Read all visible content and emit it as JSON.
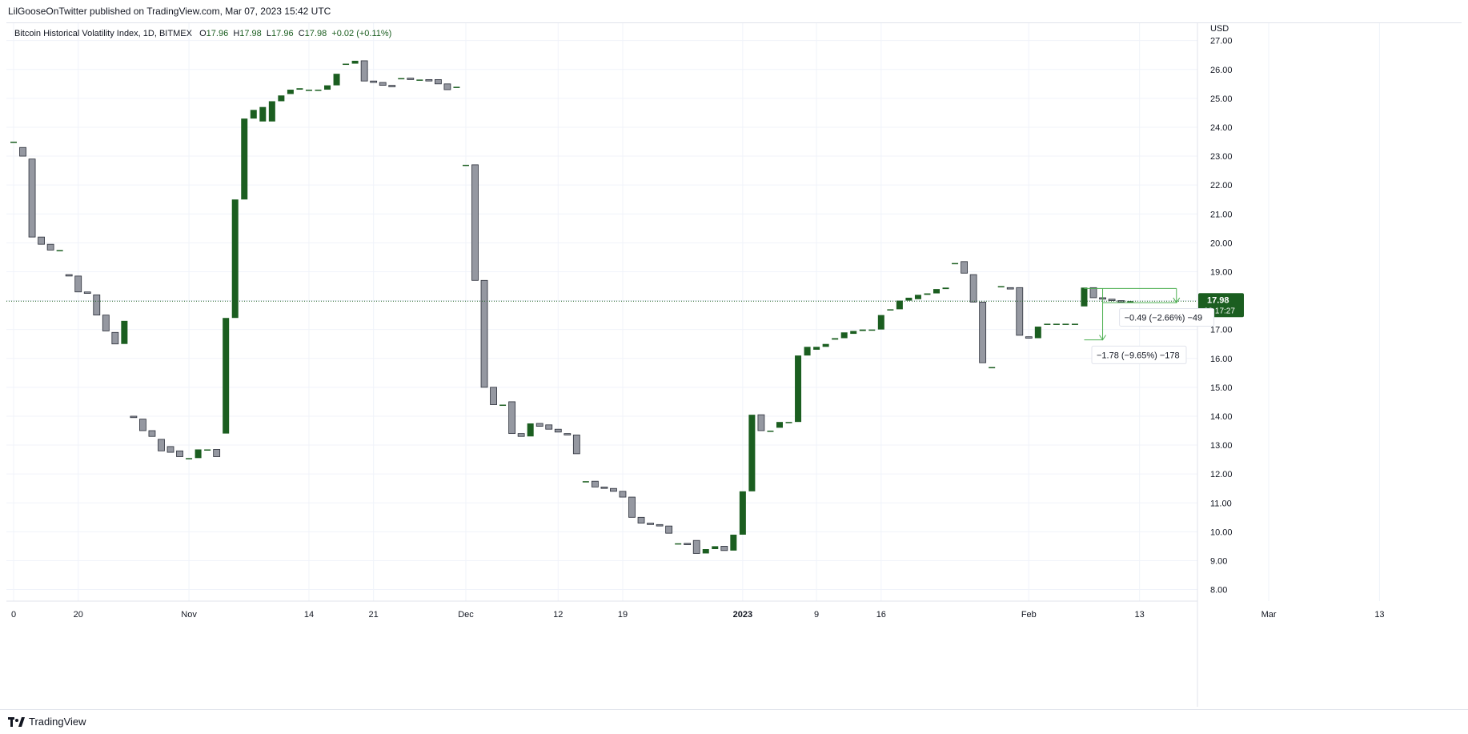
{
  "header": {
    "published": "LilGooseOnTwitter published on TradingView.com, Mar 07, 2023 15:42 UTC"
  },
  "legend": {
    "symbol": "Bitcoin Historical Volatility Index, 1D, BITMEX",
    "open_label": "O",
    "open": "17.96",
    "high_label": "H",
    "high": "17.98",
    "low_label": "L",
    "low": "17.96",
    "close_label": "C",
    "close": "17.98",
    "change": "+0.02 (+0.11%)"
  },
  "footer": {
    "brand": "TradingView",
    "logo": "tradingview-logo-icon"
  },
  "colors": {
    "up": "#1b5e20",
    "down": "#9598a1",
    "grid": "#f0f3fa",
    "price_line": "#1b5e20",
    "text": "#131722"
  },
  "chart_data": {
    "type": "candlestick",
    "currency": "USD",
    "ylim": [
      7.6,
      27.6
    ],
    "y_ticks": [
      "8.00",
      "9.00",
      "10.00",
      "11.00",
      "12.00",
      "13.00",
      "14.00",
      "15.00",
      "16.00",
      "17.00",
      "18.00",
      "19.00",
      "20.00",
      "21.00",
      "22.00",
      "23.00",
      "24.00",
      "25.00",
      "26.00",
      "27.00"
    ],
    "x_ticks": [
      {
        "label": "0",
        "index": 0
      },
      {
        "label": "20",
        "index": 7
      },
      {
        "label": "Nov",
        "index": 19
      },
      {
        "label": "14",
        "index": 32
      },
      {
        "label": "21",
        "index": 39
      },
      {
        "label": "Dec",
        "index": 49
      },
      {
        "label": "12",
        "index": 59
      },
      {
        "label": "19",
        "index": 66
      },
      {
        "label": "2023",
        "index": 79
      },
      {
        "label": "9",
        "index": 87
      },
      {
        "label": "16",
        "index": 94
      },
      {
        "label": "Feb",
        "index": 110
      },
      {
        "label": "13",
        "index": 122
      },
      {
        "label": "Mar",
        "index": 136
      },
      {
        "label": "13",
        "index": 148
      }
    ],
    "last_price": "17.98",
    "countdown": "08:17:27",
    "candles": [
      {
        "o": 23.5,
        "c": 23.5
      },
      {
        "o": 23.3,
        "c": 23.0
      },
      {
        "o": 22.9,
        "c": 20.2
      },
      {
        "o": 20.2,
        "c": 19.95
      },
      {
        "o": 19.95,
        "c": 19.75
      },
      {
        "o": 19.75,
        "c": 19.75
      },
      {
        "o": 18.9,
        "c": 18.85
      },
      {
        "o": 18.85,
        "c": 18.3
      },
      {
        "o": 18.3,
        "c": 18.25
      },
      {
        "o": 18.2,
        "c": 17.5
      },
      {
        "o": 17.5,
        "c": 16.95
      },
      {
        "o": 16.9,
        "c": 16.5
      },
      {
        "o": 16.5,
        "c": 17.3
      },
      {
        "o": 14.0,
        "c": 13.95
      },
      {
        "o": 13.9,
        "c": 13.5
      },
      {
        "o": 13.5,
        "c": 13.3
      },
      {
        "o": 13.2,
        "c": 12.8
      },
      {
        "o": 12.95,
        "c": 12.75
      },
      {
        "o": 12.8,
        "c": 12.6
      },
      {
        "o": 12.55,
        "c": 12.55
      },
      {
        "o": 12.55,
        "c": 12.85
      },
      {
        "o": 12.85,
        "c": 12.85
      },
      {
        "o": 12.85,
        "c": 12.6
      },
      {
        "o": 13.4,
        "c": 17.4
      },
      {
        "o": 17.4,
        "c": 21.5
      },
      {
        "o": 21.5,
        "c": 24.3
      },
      {
        "o": 24.3,
        "c": 24.6
      },
      {
        "o": 24.2,
        "c": 24.7
      },
      {
        "o": 24.2,
        "c": 24.9
      },
      {
        "o": 24.9,
        "c": 25.1
      },
      {
        "o": 25.15,
        "c": 25.3
      },
      {
        "o": 25.3,
        "c": 25.35
      },
      {
        "o": 25.3,
        "c": 25.3
      },
      {
        "o": 25.3,
        "c": 25.3
      },
      {
        "o": 25.3,
        "c": 25.45
      },
      {
        "o": 25.45,
        "c": 25.85
      },
      {
        "o": 26.2,
        "c": 26.2
      },
      {
        "o": 26.2,
        "c": 26.3
      },
      {
        "o": 26.3,
        "c": 25.6
      },
      {
        "o": 25.6,
        "c": 25.55
      },
      {
        "o": 25.55,
        "c": 25.45
      },
      {
        "o": 25.45,
        "c": 25.4
      },
      {
        "o": 25.7,
        "c": 25.7
      },
      {
        "o": 25.7,
        "c": 25.65
      },
      {
        "o": 25.65,
        "c": 25.65
      },
      {
        "o": 25.65,
        "c": 25.6
      },
      {
        "o": 25.65,
        "c": 25.5
      },
      {
        "o": 25.5,
        "c": 25.3
      },
      {
        "o": 25.4,
        "c": 25.4
      },
      {
        "o": 22.7,
        "c": 22.7
      },
      {
        "o": 22.7,
        "c": 18.7
      },
      {
        "o": 18.7,
        "c": 15.0
      },
      {
        "o": 15.0,
        "c": 14.4
      },
      {
        "o": 14.4,
        "c": 14.4
      },
      {
        "o": 14.5,
        "c": 13.4
      },
      {
        "o": 13.4,
        "c": 13.3
      },
      {
        "o": 13.3,
        "c": 13.75
      },
      {
        "o": 13.75,
        "c": 13.65
      },
      {
        "o": 13.7,
        "c": 13.55
      },
      {
        "o": 13.55,
        "c": 13.45
      },
      {
        "o": 13.4,
        "c": 13.35
      },
      {
        "o": 13.35,
        "c": 12.7
      },
      {
        "o": 11.75,
        "c": 11.75
      },
      {
        "o": 11.75,
        "c": 11.55
      },
      {
        "o": 11.55,
        "c": 11.5
      },
      {
        "o": 11.5,
        "c": 11.4
      },
      {
        "o": 11.4,
        "c": 11.2
      },
      {
        "o": 11.2,
        "c": 10.5
      },
      {
        "o": 10.5,
        "c": 10.3
      },
      {
        "o": 10.3,
        "c": 10.25
      },
      {
        "o": 10.25,
        "c": 10.2
      },
      {
        "o": 10.2,
        "c": 9.95
      },
      {
        "o": 9.6,
        "c": 9.6
      },
      {
        "o": 9.6,
        "c": 9.55
      },
      {
        "o": 9.7,
        "c": 9.25
      },
      {
        "o": 9.25,
        "c": 9.4
      },
      {
        "o": 9.4,
        "c": 9.5
      },
      {
        "o": 9.5,
        "c": 9.35
      },
      {
        "o": 9.35,
        "c": 9.9
      },
      {
        "o": 9.9,
        "c": 11.4
      },
      {
        "o": 11.4,
        "c": 14.05
      },
      {
        "o": 14.05,
        "c": 13.5
      },
      {
        "o": 13.5,
        "c": 13.5
      },
      {
        "o": 13.6,
        "c": 13.8
      },
      {
        "o": 13.8,
        "c": 13.8
      },
      {
        "o": 13.8,
        "c": 16.1
      },
      {
        "o": 16.1,
        "c": 16.4
      },
      {
        "o": 16.3,
        "c": 16.4
      },
      {
        "o": 16.4,
        "c": 16.5
      },
      {
        "o": 16.65,
        "c": 16.7
      },
      {
        "o": 16.7,
        "c": 16.9
      },
      {
        "o": 16.85,
        "c": 16.95
      },
      {
        "o": 16.95,
        "c": 17.0
      },
      {
        "o": 17.0,
        "c": 17.0
      },
      {
        "o": 17.0,
        "c": 17.5
      },
      {
        "o": 17.7,
        "c": 17.7
      },
      {
        "o": 17.7,
        "c": 18.0
      },
      {
        "o": 18.0,
        "c": 18.1
      },
      {
        "o": 18.05,
        "c": 18.2
      },
      {
        "o": 18.2,
        "c": 18.25
      },
      {
        "o": 18.25,
        "c": 18.4
      },
      {
        "o": 18.4,
        "c": 18.45
      },
      {
        "o": 19.3,
        "c": 19.3
      },
      {
        "o": 19.35,
        "c": 18.95
      },
      {
        "o": 18.9,
        "c": 17.95
      },
      {
        "o": 17.95,
        "c": 15.85
      },
      {
        "o": 15.7,
        "c": 15.7
      },
      {
        "o": 18.5,
        "c": 18.5
      },
      {
        "o": 18.45,
        "c": 18.4
      },
      {
        "o": 18.45,
        "c": 16.8
      },
      {
        "o": 16.75,
        "c": 16.7
      },
      {
        "o": 16.7,
        "c": 17.1
      },
      {
        "o": 17.2,
        "c": 17.2
      },
      {
        "o": 17.2,
        "c": 17.2
      },
      {
        "o": 17.2,
        "c": 17.2
      },
      {
        "o": 17.2,
        "c": 17.2
      },
      {
        "o": 17.8,
        "c": 18.45
      },
      {
        "o": 18.45,
        "c": 18.1
      },
      {
        "o": 18.1,
        "c": 18.05
      },
      {
        "o": 18.05,
        "c": 18.0
      },
      {
        "o": 18.0,
        "c": 17.95
      },
      {
        "o": 17.96,
        "c": 17.98
      }
    ],
    "measures": [
      {
        "text": "−1.78 (−9.65%) −178",
        "from_index": 116,
        "to_index": 118,
        "top": 18.42,
        "bottom": 16.64,
        "label_price": 16.12,
        "label_index": 117
      },
      {
        "text": "−0.49 (−2.66%) −49",
        "from_index": 118,
        "to_index": 126,
        "top": 18.42,
        "bottom": 17.93,
        "label_price": 17.42,
        "label_index": 120
      }
    ]
  }
}
